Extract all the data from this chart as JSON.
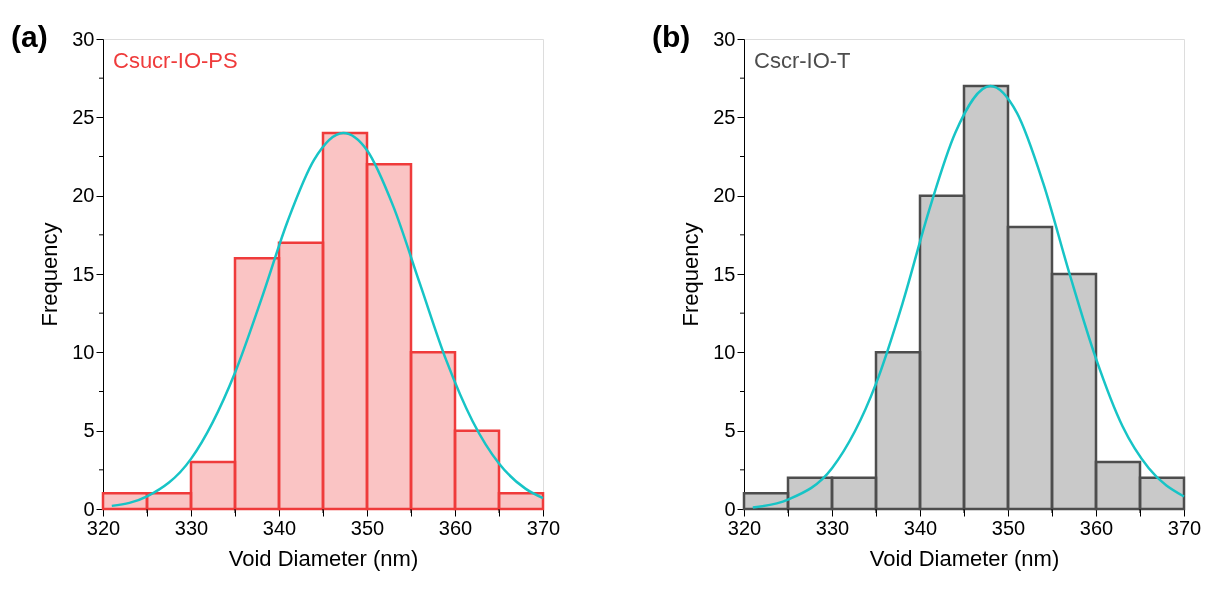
{
  "chart_data": [
    {
      "type": "histogram",
      "title": "(a)",
      "xlabel": "Void Diameter (nm)",
      "ylabel": "Frequency",
      "bins": [
        320,
        325,
        330,
        335,
        340,
        345,
        350,
        355,
        360,
        365,
        370
      ],
      "series": [
        {
          "name": "Csucr-IO-PS",
          "color": "#ef3b3b",
          "values": [
            1,
            1,
            3,
            16,
            17,
            24,
            22,
            10,
            5,
            1
          ]
        },
        {
          "type": "line",
          "color": "#17c4c6",
          "x": [
            321,
            325,
            330,
            335,
            338,
            341,
            344,
            347.3,
            350,
            353,
            356,
            359,
            362,
            365,
            368,
            370
          ],
          "values": [
            0.2,
            0.8,
            3.2,
            8.7,
            13.4,
            18.4,
            22.3,
            24,
            22.9,
            19.3,
            14.4,
            9.5,
            5.6,
            2.9,
            1.3,
            0.7
          ]
        }
      ],
      "xlim": [
        320,
        370
      ],
      "xticks": [
        320,
        {
          "value": 325,
          "label": null
        },
        330,
        {
          "value": 335,
          "label": null
        },
        340,
        {
          "value": 345,
          "label": null
        },
        350,
        {
          "value": 355,
          "label": null
        },
        360,
        {
          "value": 365,
          "label": null
        },
        370
      ],
      "ylim": [
        0,
        30
      ],
      "yticks": [
        0,
        {
          "value": 2.5,
          "label": null
        },
        5,
        {
          "value": 7.5,
          "label": null
        },
        10,
        {
          "value": 12.5,
          "label": null
        },
        15,
        {
          "value": 17.5,
          "label": null
        },
        20,
        {
          "value": 22.5,
          "label": null
        },
        25,
        {
          "value": 27.5,
          "label": null
        },
        30
      ],
      "grid": false
    },
    {
      "type": "histogram",
      "title": "(b)",
      "xlabel": "Void Diameter (nm)",
      "ylabel": "Frequency",
      "bins": [
        320,
        325,
        330,
        335,
        340,
        345,
        350,
        355,
        360,
        365,
        370
      ],
      "series": [
        {
          "name": "Cscr-IO-T",
          "color": "#4d4d4d",
          "values": [
            1,
            2,
            2,
            10,
            20,
            27,
            18,
            15,
            3,
            2
          ]
        },
        {
          "type": "line",
          "color": "#17c4c6",
          "x": [
            321,
            325,
            330,
            335,
            338,
            341,
            344,
            348,
            351,
            354,
            357,
            360,
            363,
            366,
            370
          ],
          "values": [
            0.1,
            0.6,
            2.6,
            8.0,
            13.1,
            19.0,
            24.0,
            27,
            25.3,
            20.8,
            15.0,
            9.6,
            5.3,
            2.6,
            0.8
          ]
        }
      ],
      "xlim": [
        320,
        370
      ],
      "xticks": [
        320,
        {
          "value": 325,
          "label": null
        },
        330,
        {
          "value": 335,
          "label": null
        },
        340,
        {
          "value": 345,
          "label": null
        },
        350,
        {
          "value": 355,
          "label": null
        },
        360,
        {
          "value": 365,
          "label": null
        },
        370
      ],
      "ylim": [
        0,
        30
      ],
      "yticks": [
        0,
        {
          "value": 2.5,
          "label": null
        },
        5,
        {
          "value": 7.5,
          "label": null
        },
        10,
        {
          "value": 12.5,
          "label": null
        },
        15,
        {
          "value": 17.5,
          "label": null
        },
        20,
        {
          "value": 22.5,
          "label": null
        },
        25,
        {
          "value": 27.5,
          "label": null
        },
        30
      ],
      "grid": false
    }
  ]
}
